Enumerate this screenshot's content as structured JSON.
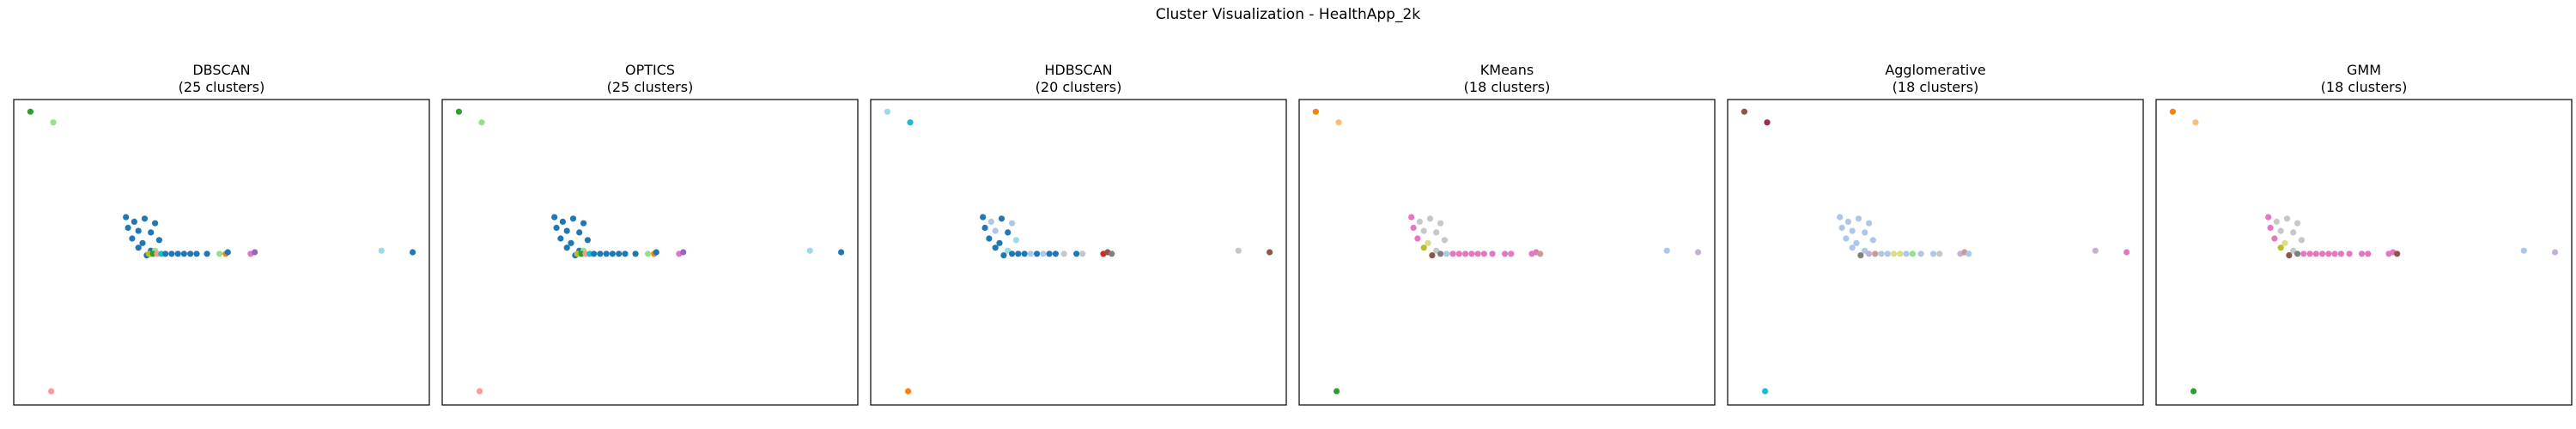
{
  "figure": {
    "title": "Cluster Visualization - HealthApp_2k"
  },
  "chart_data": [
    {
      "type": "scatter",
      "title": "DBSCAN",
      "subtitle": "(25 clusters)",
      "xlabel": "",
      "ylabel": "",
      "xlim": [
        0,
        100
      ],
      "ylim": [
        0,
        100
      ],
      "axes_ticks": false,
      "points": [
        {
          "x": 4,
          "y": 96,
          "c": "#2ca02c"
        },
        {
          "x": 9.5,
          "y": 92.5,
          "c": "#98df8a"
        },
        {
          "x": 9,
          "y": 4.5,
          "c": "#ff9896"
        },
        {
          "x": 27,
          "y": 61.5,
          "c": "#1f77b4"
        },
        {
          "x": 29,
          "y": 60,
          "c": "#1f77b4"
        },
        {
          "x": 31.5,
          "y": 61,
          "c": "#1f77b4"
        },
        {
          "x": 34,
          "y": 59.5,
          "c": "#1f77b4"
        },
        {
          "x": 27.5,
          "y": 58,
          "c": "#1f77b4"
        },
        {
          "x": 30,
          "y": 57,
          "c": "#1f77b4"
        },
        {
          "x": 33,
          "y": 56.5,
          "c": "#1f77b4"
        },
        {
          "x": 28.5,
          "y": 54.5,
          "c": "#1f77b4"
        },
        {
          "x": 31,
          "y": 53,
          "c": "#1f77b4"
        },
        {
          "x": 35,
          "y": 54,
          "c": "#1f77b4"
        },
        {
          "x": 30,
          "y": 51.5,
          "c": "#1f77b4"
        },
        {
          "x": 33,
          "y": 50.5,
          "c": "#1f77b4"
        },
        {
          "x": 32,
          "y": 49,
          "c": "#1f77b4"
        },
        {
          "x": 32.5,
          "y": 49.5,
          "c": "#bcbd22"
        },
        {
          "x": 34,
          "y": 50.5,
          "c": "#98df8a"
        },
        {
          "x": 33.5,
          "y": 49.5,
          "c": "#2ca02c"
        },
        {
          "x": 34.5,
          "y": 49.5,
          "c": "#ff9896"
        },
        {
          "x": 35.5,
          "y": 49.5,
          "c": "#17becf"
        },
        {
          "x": 36.5,
          "y": 49.5,
          "c": "#1f77b4"
        },
        {
          "x": 38,
          "y": 49.5,
          "c": "#1f77b4"
        },
        {
          "x": 39.5,
          "y": 49.5,
          "c": "#1f77b4"
        },
        {
          "x": 41,
          "y": 49.5,
          "c": "#1f77b4"
        },
        {
          "x": 42.5,
          "y": 49.5,
          "c": "#1f77b4"
        },
        {
          "x": 44,
          "y": 49.5,
          "c": "#1f77b4"
        },
        {
          "x": 46.5,
          "y": 49.5,
          "c": "#1f77b4"
        },
        {
          "x": 49.5,
          "y": 49.5,
          "c": "#98df8a"
        },
        {
          "x": 51,
          "y": 49.5,
          "c": "#ff7f0e"
        },
        {
          "x": 51.5,
          "y": 50,
          "c": "#1f77b4"
        },
        {
          "x": 57,
          "y": 49.5,
          "c": "#e377c2"
        },
        {
          "x": 58,
          "y": 50,
          "c": "#9467bd"
        },
        {
          "x": 88.5,
          "y": 50.5,
          "c": "#9edae5"
        },
        {
          "x": 96,
          "y": 50,
          "c": "#1f77b4"
        }
      ]
    },
    {
      "type": "scatter",
      "title": "OPTICS",
      "subtitle": "(25 clusters)",
      "xlabel": "",
      "ylabel": "",
      "xlim": [
        0,
        100
      ],
      "ylim": [
        0,
        100
      ],
      "axes_ticks": false,
      "points": [
        {
          "x": 4,
          "y": 96,
          "c": "#2ca02c"
        },
        {
          "x": 9.5,
          "y": 92.5,
          "c": "#98df8a"
        },
        {
          "x": 9,
          "y": 4.5,
          "c": "#ff9896"
        },
        {
          "x": 27,
          "y": 61.5,
          "c": "#1f77b4"
        },
        {
          "x": 29,
          "y": 60,
          "c": "#1f77b4"
        },
        {
          "x": 31.5,
          "y": 61,
          "c": "#1f77b4"
        },
        {
          "x": 34,
          "y": 59.5,
          "c": "#1f77b4"
        },
        {
          "x": 27.5,
          "y": 58,
          "c": "#1f77b4"
        },
        {
          "x": 30,
          "y": 57,
          "c": "#1f77b4"
        },
        {
          "x": 33,
          "y": 56.5,
          "c": "#1f77b4"
        },
        {
          "x": 28.5,
          "y": 54.5,
          "c": "#1f77b4"
        },
        {
          "x": 31,
          "y": 53,
          "c": "#1f77b4"
        },
        {
          "x": 35,
          "y": 54,
          "c": "#1f77b4"
        },
        {
          "x": 30,
          "y": 51.5,
          "c": "#1f77b4"
        },
        {
          "x": 33,
          "y": 50.5,
          "c": "#1f77b4"
        },
        {
          "x": 32,
          "y": 49,
          "c": "#1f77b4"
        },
        {
          "x": 32.5,
          "y": 49.5,
          "c": "#bcbd22"
        },
        {
          "x": 34,
          "y": 50.5,
          "c": "#98df8a"
        },
        {
          "x": 33.5,
          "y": 49.5,
          "c": "#2ca02c"
        },
        {
          "x": 34.5,
          "y": 49.5,
          "c": "#ff9896"
        },
        {
          "x": 35.5,
          "y": 49.5,
          "c": "#17becf"
        },
        {
          "x": 36.5,
          "y": 49.5,
          "c": "#1f77b4"
        },
        {
          "x": 38,
          "y": 49.5,
          "c": "#1f77b4"
        },
        {
          "x": 39.5,
          "y": 49.5,
          "c": "#1f77b4"
        },
        {
          "x": 41,
          "y": 49.5,
          "c": "#1f77b4"
        },
        {
          "x": 42.5,
          "y": 49.5,
          "c": "#1f77b4"
        },
        {
          "x": 44,
          "y": 49.5,
          "c": "#1f77b4"
        },
        {
          "x": 46.5,
          "y": 49.5,
          "c": "#1f77b4"
        },
        {
          "x": 49.5,
          "y": 49.5,
          "c": "#98df8a"
        },
        {
          "x": 51,
          "y": 49.5,
          "c": "#ff7f0e"
        },
        {
          "x": 51.5,
          "y": 50,
          "c": "#1f77b4"
        },
        {
          "x": 57,
          "y": 49.5,
          "c": "#e377c2"
        },
        {
          "x": 58,
          "y": 50,
          "c": "#9467bd"
        },
        {
          "x": 88.5,
          "y": 50.5,
          "c": "#9edae5"
        },
        {
          "x": 96,
          "y": 50,
          "c": "#1f77b4"
        }
      ]
    },
    {
      "type": "scatter",
      "title": "HDBSCAN",
      "subtitle": "(20 clusters)",
      "xlabel": "",
      "ylabel": "",
      "xlim": [
        0,
        100
      ],
      "ylim": [
        0,
        100
      ],
      "axes_ticks": false,
      "points": [
        {
          "x": 4,
          "y": 96,
          "c": "#9edae5"
        },
        {
          "x": 9.5,
          "y": 92.5,
          "c": "#17becf"
        },
        {
          "x": 9,
          "y": 4.5,
          "c": "#ff7f0e"
        },
        {
          "x": 27,
          "y": 61.5,
          "c": "#1f77b4"
        },
        {
          "x": 29,
          "y": 60,
          "c": "#aec7e8"
        },
        {
          "x": 31.5,
          "y": 61,
          "c": "#1f77b4"
        },
        {
          "x": 34,
          "y": 59.5,
          "c": "#aec7e8"
        },
        {
          "x": 27.5,
          "y": 58,
          "c": "#1f77b4"
        },
        {
          "x": 30,
          "y": 57,
          "c": "#aec7e8"
        },
        {
          "x": 33,
          "y": 56.5,
          "c": "#1f77b4"
        },
        {
          "x": 28.5,
          "y": 54.5,
          "c": "#1f77b4"
        },
        {
          "x": 31,
          "y": 53,
          "c": "#1f77b4"
        },
        {
          "x": 35,
          "y": 54,
          "c": "#9edae5"
        },
        {
          "x": 30,
          "y": 51.5,
          "c": "#1f77b4"
        },
        {
          "x": 33,
          "y": 50.5,
          "c": "#9edae5"
        },
        {
          "x": 32,
          "y": 49,
          "c": "#1f77b4"
        },
        {
          "x": 34,
          "y": 49.5,
          "c": "#1f77b4"
        },
        {
          "x": 35.5,
          "y": 49.5,
          "c": "#1f77b4"
        },
        {
          "x": 37,
          "y": 49.5,
          "c": "#1f77b4"
        },
        {
          "x": 38.5,
          "y": 49.5,
          "c": "#aec7e8"
        },
        {
          "x": 40,
          "y": 49.5,
          "c": "#1f77b4"
        },
        {
          "x": 41.5,
          "y": 49.5,
          "c": "#aec7e8"
        },
        {
          "x": 43,
          "y": 49.5,
          "c": "#1f77b4"
        },
        {
          "x": 44.5,
          "y": 49.5,
          "c": "#1f77b4"
        },
        {
          "x": 46.5,
          "y": 49.5,
          "c": "#c7c7c7"
        },
        {
          "x": 49.5,
          "y": 49.5,
          "c": "#1f77b4"
        },
        {
          "x": 51,
          "y": 49.5,
          "c": "#c7c7c7"
        },
        {
          "x": 56,
          "y": 49.5,
          "c": "#d62728"
        },
        {
          "x": 57,
          "y": 50,
          "c": "#8c564b"
        },
        {
          "x": 58,
          "y": 49.5,
          "c": "#7f7f7f"
        },
        {
          "x": 88.5,
          "y": 50.5,
          "c": "#c7c7c7"
        },
        {
          "x": 96,
          "y": 50,
          "c": "#8c564b"
        }
      ]
    },
    {
      "type": "scatter",
      "title": "KMeans",
      "subtitle": "(18 clusters)",
      "xlabel": "",
      "ylabel": "",
      "xlim": [
        0,
        100
      ],
      "ylim": [
        0,
        100
      ],
      "axes_ticks": false,
      "points": [
        {
          "x": 4,
          "y": 96,
          "c": "#ff7f0e"
        },
        {
          "x": 9.5,
          "y": 92.5,
          "c": "#ffbb78"
        },
        {
          "x": 9,
          "y": 4.5,
          "c": "#2ca02c"
        },
        {
          "x": 27,
          "y": 61.5,
          "c": "#e377c2"
        },
        {
          "x": 29,
          "y": 60,
          "c": "#c7c7c7"
        },
        {
          "x": 31.5,
          "y": 61,
          "c": "#c7c7c7"
        },
        {
          "x": 34,
          "y": 59.5,
          "c": "#c7c7c7"
        },
        {
          "x": 27.5,
          "y": 58,
          "c": "#e377c2"
        },
        {
          "x": 30,
          "y": 57,
          "c": "#c7c7c7"
        },
        {
          "x": 33,
          "y": 56.5,
          "c": "#c7c7c7"
        },
        {
          "x": 28.5,
          "y": 54.5,
          "c": "#e377c2"
        },
        {
          "x": 31,
          "y": 53,
          "c": "#dbdb8d"
        },
        {
          "x": 35,
          "y": 54,
          "c": "#c7c7c7"
        },
        {
          "x": 30,
          "y": 51.5,
          "c": "#bcbd22"
        },
        {
          "x": 33,
          "y": 50.5,
          "c": "#c7c7c7"
        },
        {
          "x": 32,
          "y": 49,
          "c": "#8c564b"
        },
        {
          "x": 34,
          "y": 49.5,
          "c": "#7f7f7f"
        },
        {
          "x": 35.5,
          "y": 49.5,
          "c": "#aec7e8"
        },
        {
          "x": 37,
          "y": 49.5,
          "c": "#e377c2"
        },
        {
          "x": 38.5,
          "y": 49.5,
          "c": "#e377c2"
        },
        {
          "x": 40,
          "y": 49.5,
          "c": "#e377c2"
        },
        {
          "x": 41.5,
          "y": 49.5,
          "c": "#e377c2"
        },
        {
          "x": 43,
          "y": 49.5,
          "c": "#e377c2"
        },
        {
          "x": 44.5,
          "y": 49.5,
          "c": "#e377c2"
        },
        {
          "x": 46.5,
          "y": 49.5,
          "c": "#e377c2"
        },
        {
          "x": 49.5,
          "y": 49.5,
          "c": "#e377c2"
        },
        {
          "x": 51,
          "y": 49.5,
          "c": "#e377c2"
        },
        {
          "x": 56,
          "y": 49.5,
          "c": "#e377c2"
        },
        {
          "x": 57,
          "y": 50,
          "c": "#e377c2"
        },
        {
          "x": 58,
          "y": 49.5,
          "c": "#c49c94"
        },
        {
          "x": 88.5,
          "y": 50.5,
          "c": "#aec7e8"
        },
        {
          "x": 96,
          "y": 50,
          "c": "#c5b0d5"
        }
      ]
    },
    {
      "type": "scatter",
      "title": "Agglomerative",
      "subtitle": "(18 clusters)",
      "xlabel": "",
      "ylabel": "",
      "xlim": [
        0,
        100
      ],
      "ylim": [
        0,
        100
      ],
      "axes_ticks": false,
      "points": [
        {
          "x": 4,
          "y": 96,
          "c": "#8c564b"
        },
        {
          "x": 9.5,
          "y": 92.5,
          "c": "#9b2d55"
        },
        {
          "x": 9,
          "y": 4.5,
          "c": "#17becf"
        },
        {
          "x": 27,
          "y": 61.5,
          "c": "#aec7e8"
        },
        {
          "x": 29,
          "y": 60,
          "c": "#aec7e8"
        },
        {
          "x": 31.5,
          "y": 61,
          "c": "#aec7e8"
        },
        {
          "x": 34,
          "y": 59.5,
          "c": "#aec7e8"
        },
        {
          "x": 27.5,
          "y": 58,
          "c": "#aec7e8"
        },
        {
          "x": 30,
          "y": 57,
          "c": "#aec7e8"
        },
        {
          "x": 33,
          "y": 56.5,
          "c": "#aec7e8"
        },
        {
          "x": 28.5,
          "y": 54.5,
          "c": "#aec7e8"
        },
        {
          "x": 31,
          "y": 53,
          "c": "#aec7e8"
        },
        {
          "x": 35,
          "y": 54,
          "c": "#aec7e8"
        },
        {
          "x": 30,
          "y": 51.5,
          "c": "#aec7e8"
        },
        {
          "x": 33,
          "y": 50.5,
          "c": "#aec7e8"
        },
        {
          "x": 32,
          "y": 49,
          "c": "#7f7f7f"
        },
        {
          "x": 34,
          "y": 49.5,
          "c": "#c5b0d5"
        },
        {
          "x": 35.5,
          "y": 49.5,
          "c": "#c49c94"
        },
        {
          "x": 37,
          "y": 49.5,
          "c": "#aec7e8"
        },
        {
          "x": 38.5,
          "y": 49.5,
          "c": "#aec7e8"
        },
        {
          "x": 40,
          "y": 49.5,
          "c": "#dbdb8d"
        },
        {
          "x": 41.5,
          "y": 49.5,
          "c": "#dbdb8d"
        },
        {
          "x": 43,
          "y": 49.5,
          "c": "#aec7e8"
        },
        {
          "x": 44.5,
          "y": 49.5,
          "c": "#98df8a"
        },
        {
          "x": 46.5,
          "y": 49.5,
          "c": "#aec7e8"
        },
        {
          "x": 49.5,
          "y": 49.5,
          "c": "#aec7e8"
        },
        {
          "x": 51,
          "y": 49.5,
          "c": "#c7c7c7"
        },
        {
          "x": 56,
          "y": 49.5,
          "c": "#c5b0d5"
        },
        {
          "x": 57,
          "y": 50,
          "c": "#c49c94"
        },
        {
          "x": 58,
          "y": 49.5,
          "c": "#aec7e8"
        },
        {
          "x": 88.5,
          "y": 50.5,
          "c": "#c5b0d5"
        },
        {
          "x": 96,
          "y": 50,
          "c": "#e377c2"
        }
      ]
    },
    {
      "type": "scatter",
      "title": "GMM",
      "subtitle": "(18 clusters)",
      "xlabel": "",
      "ylabel": "",
      "xlim": [
        0,
        100
      ],
      "ylim": [
        0,
        100
      ],
      "axes_ticks": false,
      "points": [
        {
          "x": 4,
          "y": 96,
          "c": "#ff7f0e"
        },
        {
          "x": 9.5,
          "y": 92.5,
          "c": "#ffbb78"
        },
        {
          "x": 9,
          "y": 4.5,
          "c": "#2ca02c"
        },
        {
          "x": 27,
          "y": 61.5,
          "c": "#e377c2"
        },
        {
          "x": 29,
          "y": 60,
          "c": "#c7c7c7"
        },
        {
          "x": 31.5,
          "y": 61,
          "c": "#c7c7c7"
        },
        {
          "x": 34,
          "y": 59.5,
          "c": "#c7c7c7"
        },
        {
          "x": 27.5,
          "y": 58,
          "c": "#e377c2"
        },
        {
          "x": 30,
          "y": 57,
          "c": "#c7c7c7"
        },
        {
          "x": 33,
          "y": 56.5,
          "c": "#c7c7c7"
        },
        {
          "x": 28.5,
          "y": 54.5,
          "c": "#e377c2"
        },
        {
          "x": 31,
          "y": 53,
          "c": "#dbdb8d"
        },
        {
          "x": 35,
          "y": 54,
          "c": "#c7c7c7"
        },
        {
          "x": 30,
          "y": 51.5,
          "c": "#bcbd22"
        },
        {
          "x": 33,
          "y": 50.5,
          "c": "#c7c7c7"
        },
        {
          "x": 32,
          "y": 49,
          "c": "#8c564b"
        },
        {
          "x": 34,
          "y": 49.5,
          "c": "#7f7f7f"
        },
        {
          "x": 35.5,
          "y": 49.5,
          "c": "#e377c2"
        },
        {
          "x": 37,
          "y": 49.5,
          "c": "#e377c2"
        },
        {
          "x": 38.5,
          "y": 49.5,
          "c": "#e377c2"
        },
        {
          "x": 40,
          "y": 49.5,
          "c": "#e377c2"
        },
        {
          "x": 41.5,
          "y": 49.5,
          "c": "#e377c2"
        },
        {
          "x": 43,
          "y": 49.5,
          "c": "#e377c2"
        },
        {
          "x": 44.5,
          "y": 49.5,
          "c": "#e377c2"
        },
        {
          "x": 46.5,
          "y": 49.5,
          "c": "#e377c2"
        },
        {
          "x": 49.5,
          "y": 49.5,
          "c": "#e377c2"
        },
        {
          "x": 51,
          "y": 49.5,
          "c": "#e377c2"
        },
        {
          "x": 56,
          "y": 49.5,
          "c": "#e377c2"
        },
        {
          "x": 57,
          "y": 50,
          "c": "#e377c2"
        },
        {
          "x": 58,
          "y": 49.5,
          "c": "#8c564b"
        },
        {
          "x": 88.5,
          "y": 50.5,
          "c": "#aec7e8"
        },
        {
          "x": 96,
          "y": 50,
          "c": "#c5b0d5"
        }
      ]
    }
  ]
}
